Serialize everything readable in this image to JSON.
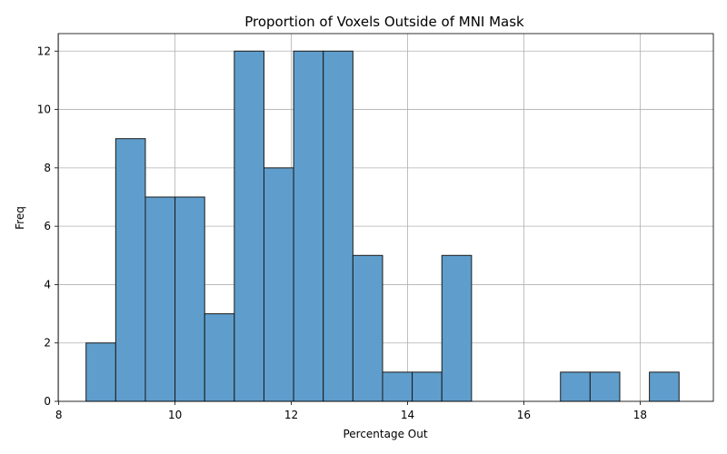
{
  "chart_data": {
    "type": "bar",
    "title": "Proportion of Voxels Outside of MNI Mask",
    "xlabel": "Percentage Out",
    "ylabel": "Freq",
    "xlim": [
      7.99,
      19.26
    ],
    "ylim": [
      0,
      12.6
    ],
    "xticks": [
      8,
      10,
      12,
      14,
      16,
      18
    ],
    "yticks": [
      0,
      2,
      4,
      6,
      8,
      10,
      12
    ],
    "grid": true,
    "bar_color": "#5f9ecc",
    "edge_color": "#1a1a1a",
    "bins": [
      {
        "start": 8.47,
        "end": 8.98,
        "value": 2
      },
      {
        "start": 8.98,
        "end": 9.49,
        "value": 9
      },
      {
        "start": 9.49,
        "end": 10.0,
        "value": 7
      },
      {
        "start": 10.0,
        "end": 10.51,
        "value": 7
      },
      {
        "start": 10.51,
        "end": 11.02,
        "value": 3
      },
      {
        "start": 11.02,
        "end": 11.53,
        "value": 12
      },
      {
        "start": 11.53,
        "end": 12.04,
        "value": 8
      },
      {
        "start": 12.04,
        "end": 12.55,
        "value": 12
      },
      {
        "start": 12.55,
        "end": 13.06,
        "value": 12
      },
      {
        "start": 13.06,
        "end": 13.57,
        "value": 5
      },
      {
        "start": 13.57,
        "end": 14.08,
        "value": 1
      },
      {
        "start": 14.08,
        "end": 14.59,
        "value": 1
      },
      {
        "start": 14.59,
        "end": 15.1,
        "value": 5
      },
      {
        "start": 15.1,
        "end": 15.61,
        "value": 0
      },
      {
        "start": 15.61,
        "end": 16.12,
        "value": 0
      },
      {
        "start": 16.12,
        "end": 16.63,
        "value": 0
      },
      {
        "start": 16.63,
        "end": 17.14,
        "value": 1
      },
      {
        "start": 17.14,
        "end": 17.65,
        "value": 1
      },
      {
        "start": 17.65,
        "end": 18.16,
        "value": 0
      },
      {
        "start": 18.16,
        "end": 18.67,
        "value": 1
      }
    ]
  }
}
